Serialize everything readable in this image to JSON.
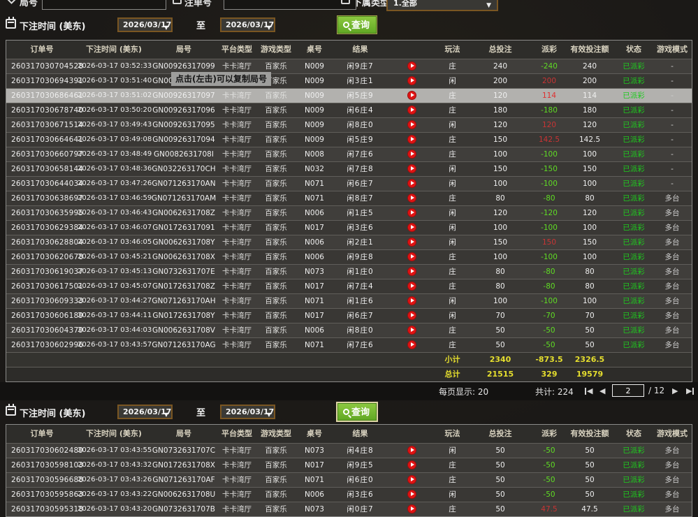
{
  "filters_top": {
    "round_label": "局号",
    "bet_no_label": "注单号",
    "subordinate_label": "下属类型",
    "subordinate_value": "1.全部"
  },
  "filter1": {
    "time_label": "下注时间 (美东)",
    "date_from": "2026/03/17",
    "to_label": "至",
    "date_to": "2026/03/17",
    "query_label": "查询"
  },
  "filter2": {
    "time_label": "下注时间 (美东)",
    "date_from": "2026/03/17",
    "to_label": "至",
    "date_to": "2026/03/17",
    "query_label": "查询"
  },
  "tooltip": {
    "text": "点击(左击)可以复制局号"
  },
  "table": {
    "columns": [
      "订单号",
      "下注时间 (美东)",
      "局号",
      "平台类型",
      "游戏类型",
      "桌号",
      "结果",
      "",
      "玩法",
      "总投注",
      "派彩",
      "有效投注额",
      "状态",
      "游戏模式"
    ]
  },
  "table1": {
    "rows": [
      {
        "order": "260317030704528",
        "time": "2026-03-17 03:52:33",
        "round": "GN00926317099",
        "plat": "卡卡湾厅",
        "game": "百家乐",
        "tbl": "N009",
        "result": "闲9庄7",
        "side": "庄",
        "total": "240",
        "pay": "-240",
        "valid": "240",
        "status": "已派彩",
        "mode": "-"
      },
      {
        "order": "260317030694391",
        "time": "2026-03-17 03:51:40",
        "round": "GN00926317098",
        "plat": "卡卡湾厅",
        "game": "百家乐",
        "tbl": "N009",
        "result": "闲3庄1",
        "side": "闲",
        "total": "200",
        "pay": "200",
        "valid": "200",
        "status": "已派彩",
        "mode": "-"
      },
      {
        "order": "260317030686461",
        "time": "2026-03-17 03:51:02",
        "round": "GN00926317097",
        "plat": "卡卡湾厅",
        "game": "百家乐",
        "tbl": "N009",
        "result": "闲5庄9",
        "side": "庄",
        "total": "120",
        "pay": "114",
        "valid": "114",
        "status": "已派彩",
        "mode": "-",
        "hl": true
      },
      {
        "order": "260317030678740",
        "time": "2026-03-17 03:50:20",
        "round": "GN00926317096",
        "plat": "卡卡湾厅",
        "game": "百家乐",
        "tbl": "N009",
        "result": "闲6庄4",
        "side": "庄",
        "total": "180",
        "pay": "-180",
        "valid": "180",
        "status": "已派彩",
        "mode": "-"
      },
      {
        "order": "260317030671514",
        "time": "2026-03-17 03:49:43",
        "round": "GN00926317095",
        "plat": "卡卡湾厅",
        "game": "百家乐",
        "tbl": "N009",
        "result": "闲8庄0",
        "side": "闲",
        "total": "120",
        "pay": "120",
        "valid": "120",
        "status": "已派彩",
        "mode": "-"
      },
      {
        "order": "260317030664641",
        "time": "2026-03-17 03:49:08",
        "round": "GN00926317094",
        "plat": "卡卡湾厅",
        "game": "百家乐",
        "tbl": "N009",
        "result": "闲5庄9",
        "side": "庄",
        "total": "150",
        "pay": "142.5",
        "valid": "142.5",
        "status": "已派彩",
        "mode": "-"
      },
      {
        "order": "260317030660797",
        "time": "2026-03-17 03:48:49",
        "round": "GN0082631708I",
        "plat": "卡卡湾厅",
        "game": "百家乐",
        "tbl": "N008",
        "result": "闲7庄6",
        "side": "庄",
        "total": "100",
        "pay": "-100",
        "valid": "100",
        "status": "已派彩",
        "mode": "-"
      },
      {
        "order": "260317030658144",
        "time": "2026-03-17 03:48:36",
        "round": "GN032263170CH",
        "plat": "卡卡湾厅",
        "game": "百家乐",
        "tbl": "N032",
        "result": "闲7庄8",
        "side": "闲",
        "total": "150",
        "pay": "-150",
        "valid": "150",
        "status": "已派彩",
        "mode": "-"
      },
      {
        "order": "260317030644034",
        "time": "2026-03-17 03:47:26",
        "round": "GN071263170AN",
        "plat": "卡卡湾厅",
        "game": "百家乐",
        "tbl": "N071",
        "result": "闲6庄7",
        "side": "闲",
        "total": "100",
        "pay": "-100",
        "valid": "100",
        "status": "已派彩",
        "mode": "-"
      },
      {
        "order": "260317030638697",
        "time": "2026-03-17 03:46:59",
        "round": "GN071263170AM",
        "plat": "卡卡湾厅",
        "game": "百家乐",
        "tbl": "N071",
        "result": "闲8庄7",
        "side": "庄",
        "total": "80",
        "pay": "-80",
        "valid": "80",
        "status": "已派彩",
        "mode": "多台"
      },
      {
        "order": "260317030635995",
        "time": "2026-03-17 03:46:43",
        "round": "GN0062631708Z",
        "plat": "卡卡湾厅",
        "game": "百家乐",
        "tbl": "N006",
        "result": "闲1庄5",
        "side": "闲",
        "total": "120",
        "pay": "-120",
        "valid": "120",
        "status": "已派彩",
        "mode": "多台"
      },
      {
        "order": "260317030629384",
        "time": "2026-03-17 03:46:07",
        "round": "GN01726317091",
        "plat": "卡卡湾厅",
        "game": "百家乐",
        "tbl": "N017",
        "result": "闲3庄6",
        "side": "闲",
        "total": "100",
        "pay": "-100",
        "valid": "100",
        "status": "已派彩",
        "mode": "多台"
      },
      {
        "order": "260317030628804",
        "time": "2026-03-17 03:46:05",
        "round": "GN0062631708Y",
        "plat": "卡卡湾厅",
        "game": "百家乐",
        "tbl": "N006",
        "result": "闲2庄1",
        "side": "闲",
        "total": "150",
        "pay": "150",
        "valid": "150",
        "status": "已派彩",
        "mode": "多台"
      },
      {
        "order": "260317030620678",
        "time": "2026-03-17 03:45:21",
        "round": "GN0062631708X",
        "plat": "卡卡湾厅",
        "game": "百家乐",
        "tbl": "N006",
        "result": "闲9庄8",
        "side": "庄",
        "total": "100",
        "pay": "-100",
        "valid": "100",
        "status": "已派彩",
        "mode": "多台"
      },
      {
        "order": "260317030619037",
        "time": "2026-03-17 03:45:13",
        "round": "GN0732631707E",
        "plat": "卡卡湾厅",
        "game": "百家乐",
        "tbl": "N073",
        "result": "闲1庄0",
        "side": "庄",
        "total": "80",
        "pay": "-80",
        "valid": "80",
        "status": "已派彩",
        "mode": "多台"
      },
      {
        "order": "260317030617501",
        "time": "2026-03-17 03:45:07",
        "round": "GN0172631708Z",
        "plat": "卡卡湾厅",
        "game": "百家乐",
        "tbl": "N017",
        "result": "闲7庄4",
        "side": "庄",
        "total": "80",
        "pay": "-80",
        "valid": "80",
        "status": "已派彩",
        "mode": "多台"
      },
      {
        "order": "260317030609333",
        "time": "2026-03-17 03:44:27",
        "round": "GN071263170AH",
        "plat": "卡卡湾厅",
        "game": "百家乐",
        "tbl": "N071",
        "result": "闲1庄6",
        "side": "闲",
        "total": "100",
        "pay": "-100",
        "valid": "100",
        "status": "已派彩",
        "mode": "多台"
      },
      {
        "order": "260317030606189",
        "time": "2026-03-17 03:44:11",
        "round": "GN0172631708Y",
        "plat": "卡卡湾厅",
        "game": "百家乐",
        "tbl": "N017",
        "result": "闲6庄7",
        "side": "闲",
        "total": "70",
        "pay": "-70",
        "valid": "70",
        "status": "已派彩",
        "mode": "多台"
      },
      {
        "order": "260317030604379",
        "time": "2026-03-17 03:44:03",
        "round": "GN0062631708V",
        "plat": "卡卡湾厅",
        "game": "百家乐",
        "tbl": "N006",
        "result": "闲8庄0",
        "side": "庄",
        "total": "50",
        "pay": "-50",
        "valid": "50",
        "status": "已派彩",
        "mode": "多台"
      },
      {
        "order": "260317030602996",
        "time": "2026-03-17 03:43:57",
        "round": "GN071263170AG",
        "plat": "卡卡湾厅",
        "game": "百家乐",
        "tbl": "N071",
        "result": "闲7庄6",
        "side": "庄",
        "total": "50",
        "pay": "-50",
        "valid": "50",
        "status": "已派彩",
        "mode": "多台"
      }
    ],
    "subtotal": {
      "label": "小计",
      "total": "2340",
      "pay": "-873.5",
      "valid": "2326.5"
    },
    "grandtotal": {
      "label": "总计",
      "total": "21515",
      "pay": "329",
      "valid": "19579"
    }
  },
  "pagination": {
    "per_page_label": "每页显示: 20",
    "total_label": "共计: 224",
    "page": "2",
    "of_label": "/ 12"
  },
  "table2": {
    "rows": [
      {
        "order": "260317030602489",
        "time": "2026-03-17 03:43:55",
        "round": "GN0732631707C",
        "plat": "卡卡湾厅",
        "game": "百家乐",
        "tbl": "N073",
        "result": "闲4庄8",
        "side": "闲",
        "total": "50",
        "pay": "-50",
        "valid": "50",
        "status": "已派彩",
        "mode": "多台"
      },
      {
        "order": "260317030598103",
        "time": "2026-03-17 03:43:32",
        "round": "GN0172631708X",
        "plat": "卡卡湾厅",
        "game": "百家乐",
        "tbl": "N017",
        "result": "闲9庄5",
        "side": "庄",
        "total": "50",
        "pay": "-50",
        "valid": "50",
        "status": "已派彩",
        "mode": "多台"
      },
      {
        "order": "260317030596688",
        "time": "2026-03-17 03:43:26",
        "round": "GN071263170AF",
        "plat": "卡卡湾厅",
        "game": "百家乐",
        "tbl": "N071",
        "result": "闲6庄0",
        "side": "庄",
        "total": "50",
        "pay": "-50",
        "valid": "50",
        "status": "已派彩",
        "mode": "多台"
      },
      {
        "order": "260317030595863",
        "time": "2026-03-17 03:43:22",
        "round": "GN0062631708U",
        "plat": "卡卡湾厅",
        "game": "百家乐",
        "tbl": "N006",
        "result": "闲3庄6",
        "side": "闲",
        "total": "50",
        "pay": "-50",
        "valid": "50",
        "status": "已派彩",
        "mode": "多台"
      },
      {
        "order": "260317030595318",
        "time": "2026-03-17 03:43:20",
        "round": "GN0732631707B",
        "plat": "卡卡湾厅",
        "game": "百家乐",
        "tbl": "N073",
        "result": "闲0庄7",
        "side": "庄",
        "total": "50",
        "pay": "47.5",
        "valid": "47.5",
        "status": "已派彩",
        "mode": "多台"
      }
    ]
  },
  "colors": {
    "accent_green": "#6ab82e",
    "status_green": "#1ecb1e",
    "win_red": "#c93434",
    "loss_green": "#5fdc24",
    "sum_yellow": "#e6df2e",
    "date_border": "#7a5622",
    "highlight_row": "#b2b1ae"
  }
}
